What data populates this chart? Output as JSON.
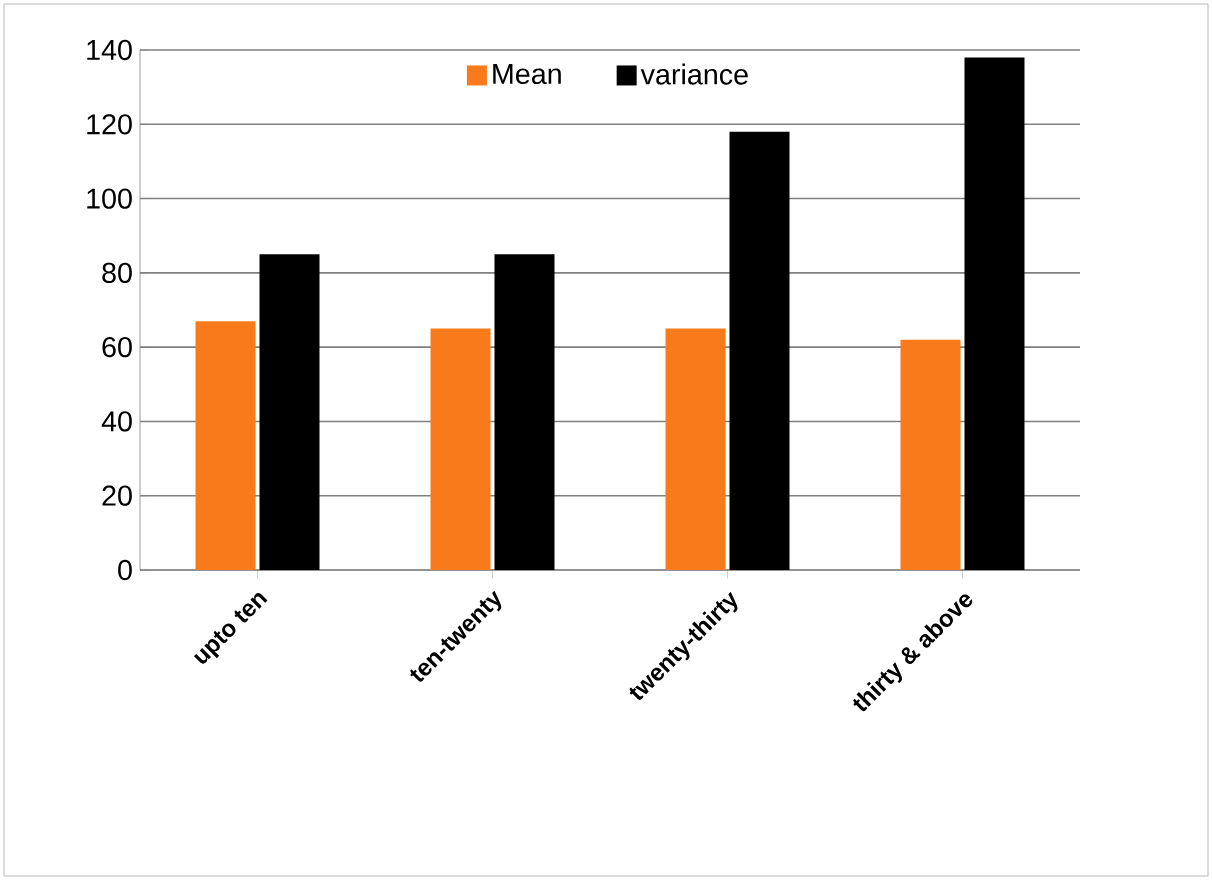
{
  "chart_data": {
    "type": "bar",
    "categories": [
      "upto ten",
      "ten-twenty",
      "twenty-thirty",
      "thirty & above"
    ],
    "series": [
      {
        "name": "Mean",
        "color": "#f97a1a",
        "values": [
          67,
          65,
          65,
          62
        ]
      },
      {
        "name": "variance",
        "color": "#000000",
        "values": [
          85,
          85,
          118,
          138
        ]
      }
    ],
    "ylim": [
      0,
      140
    ],
    "yticks": [
      0,
      20,
      40,
      60,
      80,
      100,
      120,
      140
    ],
    "grid": "y",
    "legend": "top"
  }
}
